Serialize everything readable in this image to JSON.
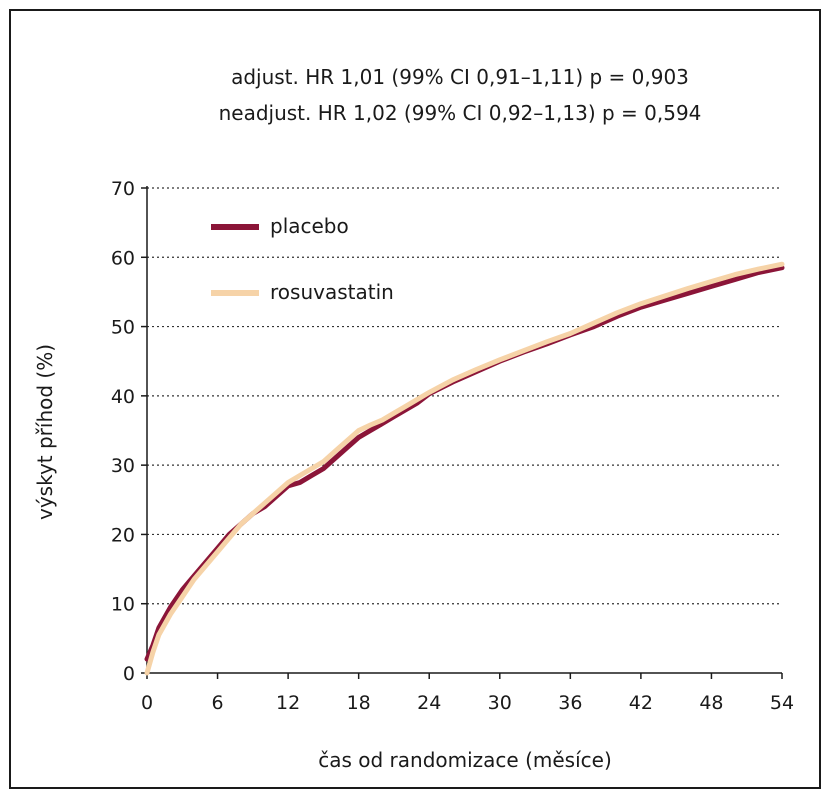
{
  "chart_data": {
    "type": "line",
    "annotations": [
      "adjust. HR 1,01 (99% CI 0,91–1,11) p = 0,903",
      "neadjust. HR 1,02 (99% CI 0,92–1,13) p = 0,594"
    ],
    "xlabel": "čas od randomizace (měsíce)",
    "ylabel": "výskyt příhod (%)",
    "xlim": [
      0,
      54
    ],
    "ylim": [
      0,
      70
    ],
    "xticks": [
      "0",
      "6",
      "12",
      "18",
      "24",
      "30",
      "36",
      "42",
      "48",
      "54"
    ],
    "yticks": [
      "0",
      "10",
      "20",
      "30",
      "40",
      "50",
      "60",
      "70"
    ],
    "grid": "horizontal dotted",
    "legend_position": "top-left",
    "series": [
      {
        "name": "placebo",
        "color": "#8b1538",
        "x": [
          0,
          0.5,
          1,
          2,
          3,
          4,
          5,
          6,
          7,
          8,
          9,
          10,
          11,
          12,
          13,
          14,
          15,
          16,
          17,
          18,
          19,
          20,
          21,
          22,
          23,
          24,
          26,
          28,
          30,
          32,
          34,
          36,
          38,
          40,
          42,
          44,
          46,
          48,
          50,
          52,
          54
        ],
        "y": [
          2.0,
          4.0,
          6.5,
          9.5,
          12.0,
          14.0,
          16.0,
          18.0,
          20.0,
          21.5,
          23.0,
          24.0,
          25.5,
          27.0,
          27.5,
          28.5,
          29.5,
          31.0,
          32.5,
          34.0,
          35.0,
          36.0,
          37.0,
          38.0,
          39.0,
          40.3,
          42.0,
          43.5,
          45.0,
          46.3,
          47.5,
          48.8,
          50.0,
          51.5,
          52.8,
          53.8,
          54.8,
          55.8,
          56.8,
          57.8,
          58.5
        ]
      },
      {
        "name": "rosuvastatin",
        "color": "#f6d3a8",
        "x": [
          0,
          0.5,
          1,
          2,
          3,
          4,
          5,
          6,
          7,
          8,
          9,
          10,
          11,
          12,
          13,
          14,
          15,
          16,
          17,
          18,
          19,
          20,
          21,
          22,
          23,
          24,
          26,
          28,
          30,
          32,
          34,
          36,
          38,
          40,
          42,
          44,
          46,
          48,
          50,
          52,
          54
        ],
        "y": [
          0.0,
          3.0,
          5.5,
          8.5,
          11.0,
          13.5,
          15.5,
          17.5,
          19.5,
          21.5,
          23.0,
          24.5,
          26.0,
          27.5,
          28.5,
          29.5,
          30.5,
          32.0,
          33.5,
          35.0,
          35.8,
          36.5,
          37.5,
          38.5,
          39.5,
          40.5,
          42.3,
          43.8,
          45.2,
          46.5,
          47.8,
          49.0,
          50.5,
          52.0,
          53.3,
          54.4,
          55.5,
          56.5,
          57.5,
          58.3,
          59.0
        ]
      }
    ]
  }
}
